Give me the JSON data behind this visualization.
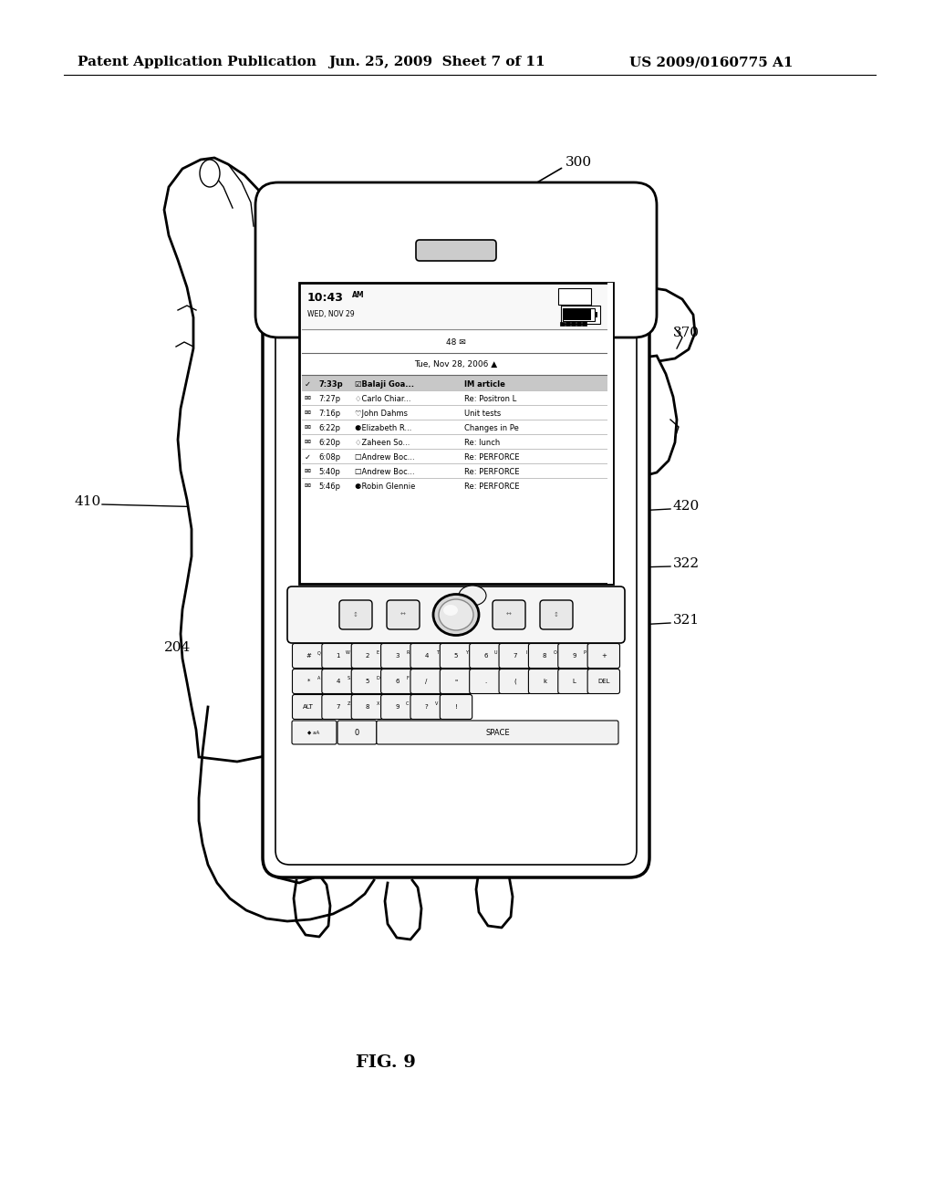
{
  "header_left": "Patent Application Publication",
  "header_center": "Jun. 25, 2009  Sheet 7 of 11",
  "header_right": "US 2009/0160775 A1",
  "figure_label": "FIG. 9",
  "ref_300": "300",
  "ref_370": "370",
  "ref_420": "420",
  "ref_410": "410",
  "ref_322": "322",
  "ref_321": "321",
  "ref_204": "204",
  "bg_color": "#ffffff",
  "line_color": "#000000",
  "header_fontsize": 11,
  "fig_label_fontsize": 14,
  "ref_fontsize": 11
}
